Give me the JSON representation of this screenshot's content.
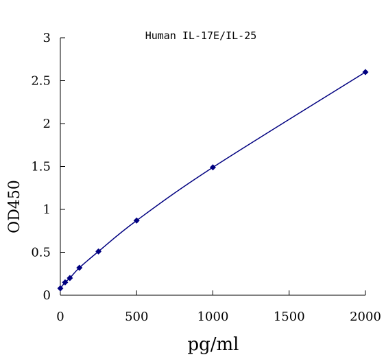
{
  "chart_data": {
    "type": "scatter",
    "title": "Human IL-17E/IL-25",
    "xlabel": "pg/ml",
    "ylabel": "OD450",
    "xlim": [
      0,
      2000
    ],
    "ylim": [
      0,
      3
    ],
    "x_ticks": [
      0,
      500,
      1000,
      1500,
      2000
    ],
    "x_tick_labels": [
      "0",
      "500",
      "1000",
      "1500",
      "2000"
    ],
    "y_ticks": [
      0,
      0.5,
      1,
      1.5,
      2,
      2.5,
      3
    ],
    "y_tick_labels": [
      "0",
      "0.5",
      "1",
      "1.5",
      "2",
      "2.5",
      "3"
    ],
    "grid": false,
    "series": [
      {
        "x": [
          0,
          31.25,
          62.5,
          125,
          250,
          500,
          1000,
          2000
        ],
        "y": [
          0.08,
          0.15,
          0.2,
          0.32,
          0.51,
          0.87,
          1.49,
          2.6
        ],
        "marker": "diamond",
        "fit_line": true,
        "color": "#000080"
      }
    ]
  }
}
